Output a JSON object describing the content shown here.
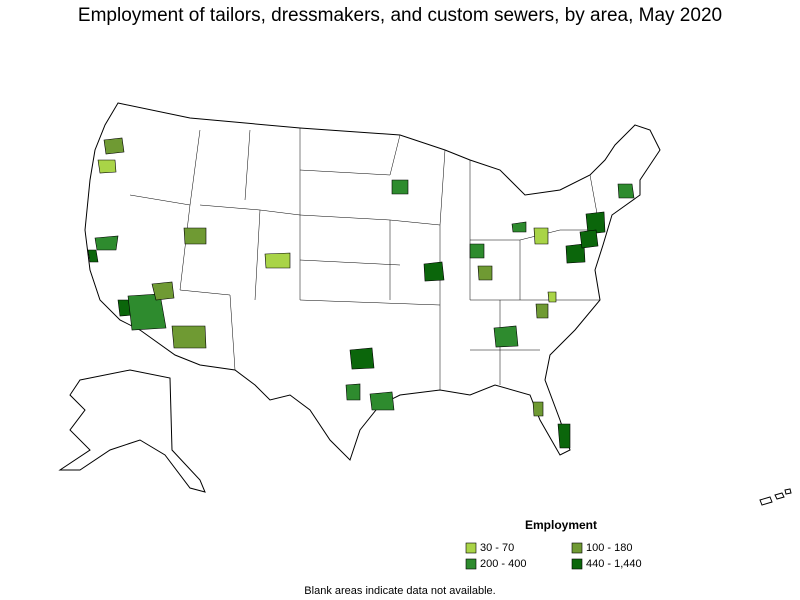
{
  "title": "Employment of tailors, dressmakers, and custom sewers, by area, May 2020",
  "legend": {
    "title": "Employment",
    "items": [
      {
        "label": "30 - 70",
        "color": "#a9d447"
      },
      {
        "label": "100 - 180",
        "color": "#6f9a33"
      },
      {
        "label": "200 - 400",
        "color": "#2e8b2e"
      },
      {
        "label": "440 - 1,440",
        "color": "#0b660b"
      }
    ]
  },
  "footnote": "Blank areas indicate data not available."
}
